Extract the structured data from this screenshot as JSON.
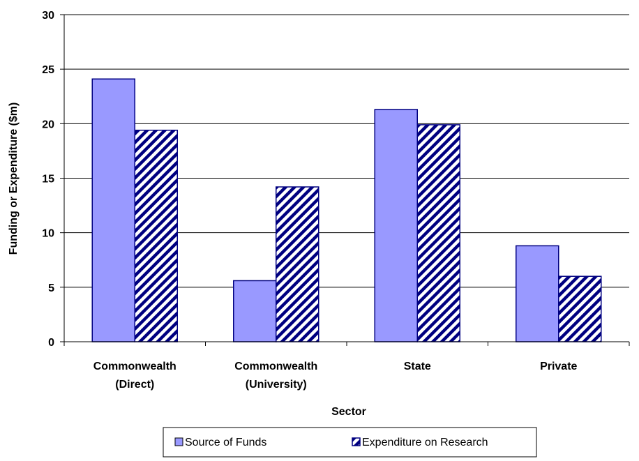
{
  "chart_data": {
    "type": "bar",
    "categories": [
      [
        "Commonwealth",
        "(Direct)"
      ],
      [
        "Commonwealth",
        "(University)"
      ],
      [
        "State"
      ],
      [
        "Private"
      ]
    ],
    "series": [
      {
        "name": "Source of Funds",
        "values": [
          24.1,
          5.6,
          21.3,
          8.8
        ],
        "fill": "#9999ff",
        "pattern": "solid"
      },
      {
        "name": "Expenditure on Research",
        "values": [
          19.4,
          14.2,
          19.9,
          6.0
        ],
        "fill": "#000080",
        "pattern": "diagonal-hatch"
      }
    ],
    "xlabel": "Sector",
    "ylabel": "Funding or Expenditure ($m)",
    "ylim": [
      0,
      30
    ],
    "yticks": [
      0,
      5,
      10,
      15,
      20,
      25,
      30
    ],
    "grid": "horizontal",
    "legend_position": "bottom"
  }
}
